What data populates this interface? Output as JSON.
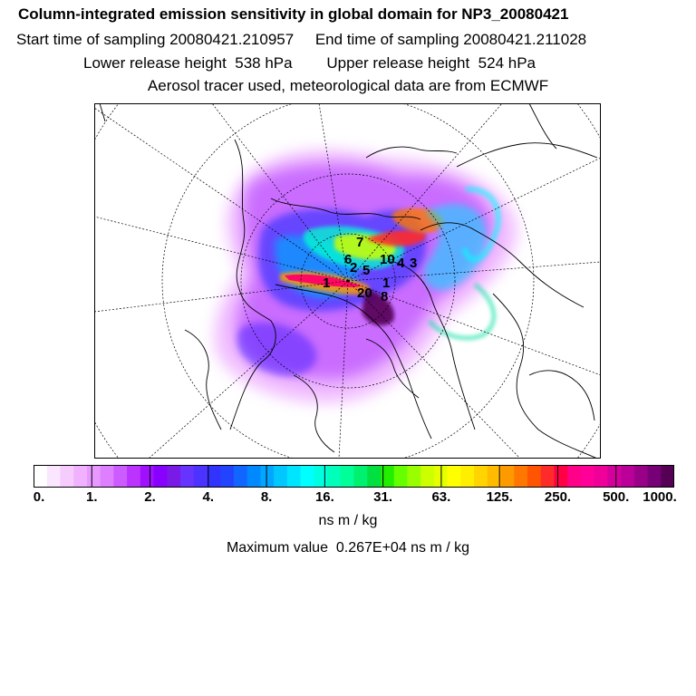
{
  "header": {
    "title": "Column-integrated emission sensitivity in global domain for NP3_20080421",
    "sampling": "Start time of sampling 20080421.210957     End time of sampling 20080421.211028",
    "release": "Lower release height  538 hPa        Upper release height  524 hPa",
    "info": "Aerosol tracer used, meteorological data are from ECMWF"
  },
  "map": {
    "release_markers": [
      "7",
      "6",
      "2",
      "5",
      "10",
      "4",
      "3",
      "1",
      "1",
      "20",
      "8"
    ]
  },
  "colorbar": {
    "colors": [
      "#ffffff",
      "#fbe6ff",
      "#f6ccff",
      "#f0b2ff",
      "#e899ff",
      "#dd7fff",
      "#cc5cff",
      "#bb33ff",
      "#a010ff",
      "#8800ff",
      "#7a1ae6",
      "#6633ff",
      "#4d33ff",
      "#3333ff",
      "#2244ff",
      "#1166ff",
      "#0088ff",
      "#00a6ff",
      "#00c8ff",
      "#00e5ff",
      "#00ffff",
      "#00ffe0",
      "#00ffbb",
      "#00ff99",
      "#00f070",
      "#00e040",
      "#22ee00",
      "#66ff00",
      "#99ff00",
      "#ccff00",
      "#e6ff00",
      "#ffff00",
      "#ffee00",
      "#ffd400",
      "#ffbb00",
      "#ff9900",
      "#ff7700",
      "#ff5500",
      "#ff2a2a",
      "#ff0044",
      "#ff0088",
      "#ff0099",
      "#ee0099",
      "#d4009b",
      "#bb0099",
      "#990088",
      "#770077",
      "#550055"
    ],
    "tick_labels": [
      "0.",
      "1.",
      "2.",
      "4.",
      "8.",
      "16.",
      "31.",
      "63.",
      "125.",
      "250.",
      "500.",
      "1000."
    ],
    "units": "ns m / kg",
    "maximum": "Maximum value  0.267E+04 ns m / kg"
  }
}
